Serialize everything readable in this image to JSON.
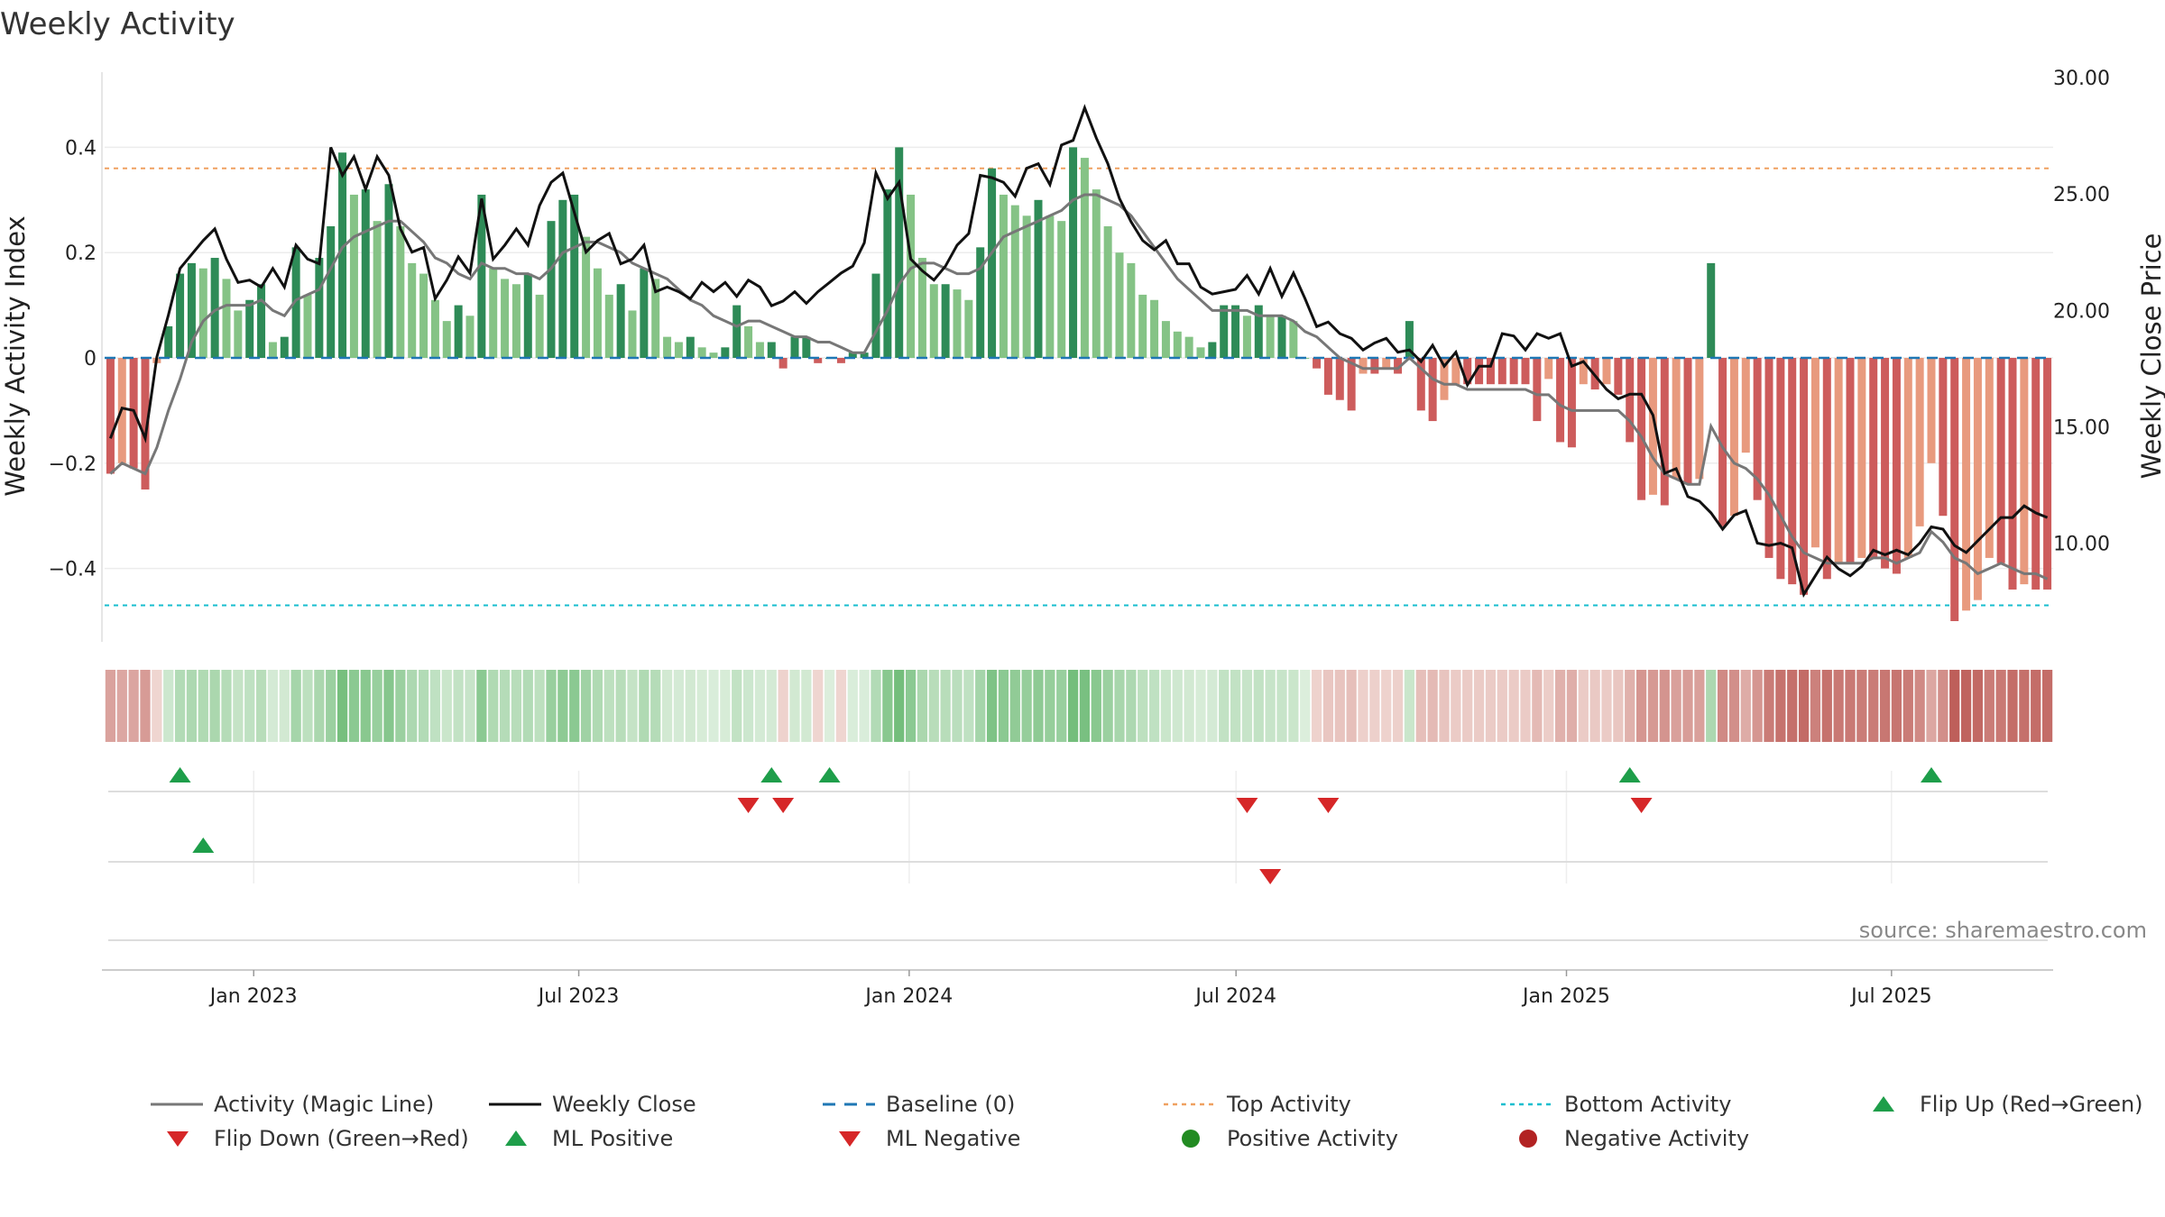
{
  "chart_data": {
    "type": "bar",
    "title": "Weekly Activity",
    "ylabel": "Weekly Activity Index",
    "y2label": "Weekly Close Price",
    "ylim": [
      -0.54,
      0.54
    ],
    "y2lim": [
      7.0,
      30.0
    ],
    "yticks": [
      "0.4",
      "0.2",
      "0",
      "−0.2",
      "−0.4"
    ],
    "y2ticks": [
      "30.00",
      "25.00",
      "20.00",
      "15.00",
      "10.00"
    ],
    "xticks": [
      "Jan 2023",
      "Jul 2023",
      "Jan 2024",
      "Jul 2024",
      "Jan 2025",
      "Jul 2025"
    ],
    "x_start": "2022-10-10",
    "x_end": "2025-09-29",
    "top_activity": 0.36,
    "bottom_activity": -0.47,
    "activity_weekly": [
      -0.22,
      -0.2,
      -0.21,
      -0.25,
      -0.01,
      0.06,
      0.16,
      0.18,
      0.17,
      0.19,
      0.15,
      0.09,
      0.11,
      0.14,
      0.03,
      0.04,
      0.21,
      0.12,
      0.19,
      0.25,
      0.39,
      0.31,
      0.32,
      0.26,
      0.33,
      0.25,
      0.18,
      0.16,
      0.11,
      0.07,
      0.1,
      0.08,
      0.31,
      0.17,
      0.15,
      0.14,
      0.16,
      0.12,
      0.26,
      0.3,
      0.31,
      0.23,
      0.17,
      0.12,
      0.14,
      0.09,
      0.17,
      0.15,
      0.04,
      0.03,
      0.04,
      0.02,
      0.01,
      0.02,
      0.1,
      0.06,
      0.03,
      0.03,
      -0.02,
      0.04,
      0.04,
      -0.01,
      0.0,
      -0.01,
      0.01,
      0.01,
      0.16,
      0.32,
      0.4,
      0.31,
      0.19,
      0.14,
      0.14,
      0.13,
      0.11,
      0.21,
      0.36,
      0.31,
      0.29,
      0.27,
      0.3,
      0.27,
      0.26,
      0.4,
      0.38,
      0.32,
      0.25,
      0.2,
      0.18,
      0.12,
      0.11,
      0.07,
      0.05,
      0.04,
      0.02,
      0.03,
      0.1,
      0.1,
      0.08,
      0.1,
      0.08,
      0.08,
      0.07,
      0.0,
      -0.02,
      -0.07,
      -0.08,
      -0.1,
      -0.03,
      -0.03,
      -0.02,
      -0.03,
      0.07,
      -0.1,
      -0.12,
      -0.08,
      -0.05,
      -0.05,
      -0.05,
      -0.05,
      -0.05,
      -0.05,
      -0.05,
      -0.12,
      -0.04,
      -0.16,
      -0.17,
      -0.05,
      -0.06,
      -0.05,
      -0.07,
      -0.16,
      -0.27,
      -0.26,
      -0.28,
      -0.23,
      -0.24,
      -0.23,
      0.18,
      -0.32,
      -0.3,
      -0.18,
      -0.27,
      -0.38,
      -0.42,
      -0.43,
      -0.45,
      -0.36,
      -0.42,
      -0.39,
      -0.39,
      -0.38,
      -0.38,
      -0.4,
      -0.41,
      -0.38,
      -0.32,
      -0.2,
      -0.3,
      -0.5,
      -0.48,
      -0.46,
      -0.38,
      -0.39,
      -0.44,
      -0.43,
      -0.44,
      -0.44
    ],
    "close_weekly": [
      14.5,
      15.8,
      15.7,
      14.5,
      18.0,
      19.8,
      21.8,
      22.4,
      23.0,
      23.5,
      22.2,
      21.2,
      21.3,
      21.0,
      21.8,
      21.0,
      22.8,
      22.2,
      22.0,
      27.0,
      25.8,
      26.6,
      25.2,
      26.6,
      25.8,
      23.5,
      22.5,
      22.7,
      20.5,
      21.3,
      22.3,
      21.6,
      24.8,
      22.2,
      22.8,
      23.5,
      22.8,
      24.5,
      25.5,
      25.9,
      24.2,
      22.5,
      23.0,
      23.3,
      22.0,
      22.2,
      22.8,
      20.8,
      21.0,
      20.8,
      20.5,
      21.2,
      20.8,
      21.2,
      20.6,
      21.3,
      21.0,
      20.2,
      20.4,
      20.8,
      20.3,
      20.8,
      21.2,
      21.6,
      21.9,
      22.9,
      25.9,
      24.8,
      25.5,
      22.2,
      21.7,
      21.3,
      21.9,
      22.8,
      23.3,
      25.8,
      25.7,
      25.5,
      24.9,
      26.1,
      26.3,
      25.4,
      27.1,
      27.3,
      28.7,
      27.4,
      26.3,
      24.8,
      23.8,
      23.0,
      22.6,
      23.0,
      22.0,
      22.0,
      21.0,
      20.7,
      20.8,
      20.9,
      21.5,
      20.7,
      21.8,
      20.6,
      21.6,
      20.5,
      19.3,
      19.5,
      19.0,
      18.8,
      18.3,
      18.6,
      18.8,
      18.2,
      18.3,
      17.8,
      18.5,
      17.6,
      18.2,
      16.8,
      17.6,
      17.6,
      19.0,
      18.9,
      18.3,
      19.0,
      18.8,
      19.0,
      17.6,
      17.8,
      17.2,
      16.6,
      16.2,
      16.4,
      16.4,
      15.5,
      13.0,
      13.2,
      12.0,
      11.8,
      11.3,
      10.6,
      11.2,
      11.4,
      10.0,
      9.9,
      10.0,
      9.8,
      7.8,
      8.6,
      9.4,
      8.9,
      8.6,
      9.0,
      9.7,
      9.5,
      9.7,
      9.5,
      10.0,
      10.7,
      10.6,
      9.9,
      9.6,
      10.1,
      10.6,
      11.1,
      11.1,
      11.6,
      11.3,
      11.1
    ],
    "magic_line_weekly": [
      -0.22,
      -0.2,
      -0.21,
      -0.22,
      -0.17,
      -0.1,
      -0.04,
      0.03,
      0.07,
      0.09,
      0.1,
      0.1,
      0.1,
      0.11,
      0.09,
      0.08,
      0.11,
      0.12,
      0.13,
      0.17,
      0.21,
      0.23,
      0.24,
      0.25,
      0.26,
      0.26,
      0.24,
      0.22,
      0.19,
      0.18,
      0.16,
      0.15,
      0.18,
      0.17,
      0.17,
      0.16,
      0.16,
      0.15,
      0.17,
      0.2,
      0.21,
      0.22,
      0.22,
      0.21,
      0.2,
      0.18,
      0.17,
      0.16,
      0.15,
      0.13,
      0.11,
      0.1,
      0.08,
      0.07,
      0.06,
      0.07,
      0.07,
      0.06,
      0.05,
      0.04,
      0.04,
      0.03,
      0.03,
      0.02,
      0.01,
      0.01,
      0.05,
      0.09,
      0.14,
      0.17,
      0.18,
      0.18,
      0.17,
      0.16,
      0.16,
      0.17,
      0.2,
      0.23,
      0.24,
      0.25,
      0.26,
      0.27,
      0.28,
      0.3,
      0.31,
      0.31,
      0.3,
      0.29,
      0.27,
      0.24,
      0.21,
      0.18,
      0.15,
      0.13,
      0.11,
      0.09,
      0.09,
      0.09,
      0.09,
      0.08,
      0.08,
      0.08,
      0.07,
      0.05,
      0.04,
      0.02,
      0.0,
      -0.01,
      -0.02,
      -0.02,
      -0.02,
      -0.02,
      0.0,
      -0.02,
      -0.04,
      -0.05,
      -0.05,
      -0.06,
      -0.06,
      -0.06,
      -0.06,
      -0.06,
      -0.06,
      -0.07,
      -0.07,
      -0.09,
      -0.1,
      -0.1,
      -0.1,
      -0.1,
      -0.1,
      -0.12,
      -0.15,
      -0.19,
      -0.22,
      -0.23,
      -0.24,
      -0.24,
      -0.13,
      -0.17,
      -0.2,
      -0.21,
      -0.23,
      -0.26,
      -0.3,
      -0.34,
      -0.37,
      -0.38,
      -0.39,
      -0.39,
      -0.39,
      -0.39,
      -0.38,
      -0.38,
      -0.39,
      -0.38,
      -0.37,
      -0.33,
      -0.35,
      -0.38,
      -0.39,
      -0.41,
      -0.4,
      -0.39,
      -0.4,
      -0.41,
      -0.41,
      -0.42
    ],
    "flip_up_row1": [
      6,
      57,
      62,
      131,
      157
    ],
    "flip_down_row1": [
      55,
      58,
      98,
      105,
      132
    ],
    "ml_positive_row2": [
      8
    ],
    "ml_negative_row2": [
      100
    ],
    "legend": [
      "Activity (Magic Line)",
      "Weekly Close",
      "Baseline (0)",
      "Top Activity",
      "Bottom Activity",
      "Flip Up (Red→Green)",
      "Flip Down (Green→Red)",
      "ML Positive",
      "ML Negative",
      "Positive Activity",
      "Negative Activity"
    ],
    "source": "source: sharemaestro.com",
    "colors": {
      "pos_strong": "#2e8b57",
      "pos_light": "#85c386",
      "neg_strong": "#cd5c5c",
      "neg_light": "#e89a7e",
      "magic_line": "#777777",
      "close": "#111111",
      "baseline": "#1f77b4",
      "top_line": "#f0a060",
      "bottom_line": "#17becf",
      "flip_up": "#1e9e4a",
      "flip_down": "#d62728",
      "pos_dot": "#228b22",
      "neg_dot": "#b22222"
    }
  }
}
